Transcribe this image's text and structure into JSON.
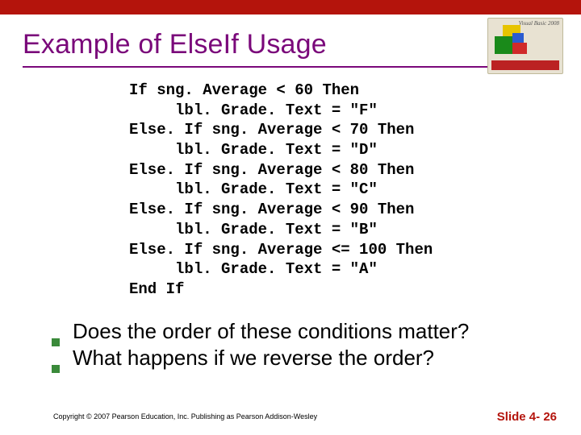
{
  "colors": {
    "top_bar": "#b4140c",
    "title": "#7a087a",
    "underline": "#7a087a",
    "bullet": "#3a8a3a",
    "footer_accent": "#b4140c",
    "background": "#ffffff",
    "text": "#000000"
  },
  "title": "Example of ElseIf Usage",
  "logo": {
    "vb_label": "Visual Basic 2008"
  },
  "code": {
    "font_family": "Courier New",
    "font_size": 19,
    "lines": [
      "If sng. Average < 60 Then",
      "     lbl. Grade. Text = \"F\"",
      "Else. If sng. Average < 70 Then",
      "     lbl. Grade. Text = \"D\"",
      "Else. If sng. Average < 80 Then",
      "     lbl. Grade. Text = \"C\"",
      "Else. If sng. Average < 90 Then",
      "     lbl. Grade. Text = \"B\"",
      "Else. If sng. Average <= 100 Then",
      "     lbl. Grade. Text = \"A\"",
      "End If"
    ]
  },
  "bullets": [
    "Does the order of these conditions matter?",
    "What happens if we reverse the order?"
  ],
  "footer": {
    "copyright": "Copyright © 2007 Pearson Education, Inc. Publishing as Pearson Addison-Wesley",
    "slide": "Slide 4- 26"
  }
}
